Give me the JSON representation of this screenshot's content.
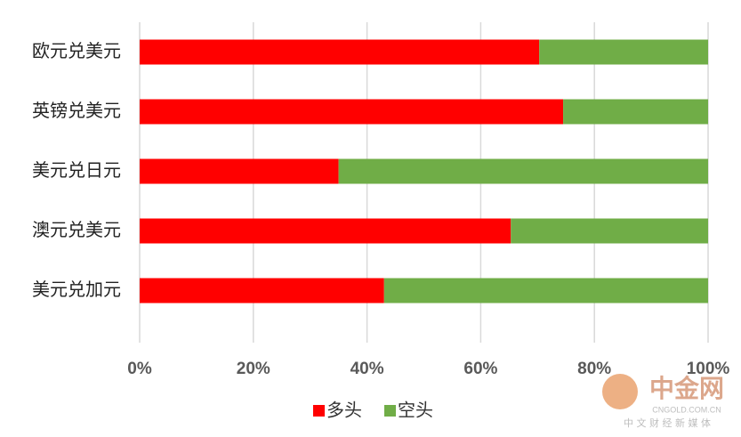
{
  "chart_data": {
    "type": "stacked-barh",
    "categories": [
      "欧元兑美元",
      "英镑兑美元",
      "美元兑日元",
      "澳元兑美元",
      "美元兑加元"
    ],
    "series": [
      {
        "name": "多头",
        "color": "#ff0000",
        "values": [
          70.3,
          74.5,
          35,
          65.3,
          43
        ]
      },
      {
        "name": "空头",
        "color": "#70ad47",
        "values": [
          29.7,
          25.5,
          65,
          34.7,
          57
        ]
      }
    ],
    "xlim": [
      0,
      100
    ],
    "xticks": [
      {
        "value": 0,
        "label": "0%"
      },
      {
        "value": 20,
        "label": "20%"
      },
      {
        "value": 40,
        "label": "40%"
      },
      {
        "value": 60,
        "label": "60%"
      },
      {
        "value": 80,
        "label": "80%"
      },
      {
        "value": 100,
        "label": "100%"
      }
    ],
    "grid": true,
    "legend": "bottom",
    "watermark": {
      "name": "中金网",
      "site": "CNGOLD.COM.CN",
      "slogan": "中 文 财 经 新 媒 体"
    }
  }
}
